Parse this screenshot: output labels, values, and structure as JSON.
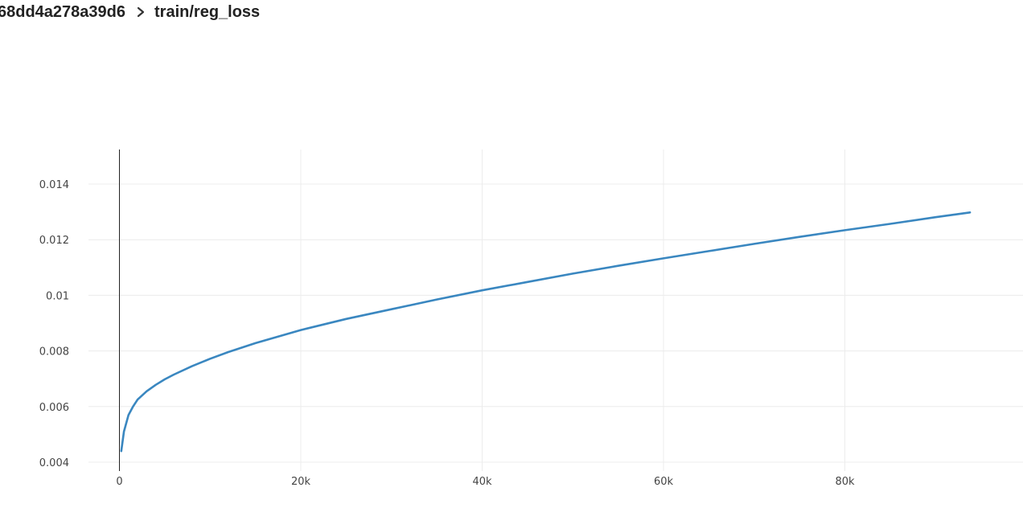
{
  "breadcrumb": {
    "run": "68dd4a278a39d6",
    "separator_icon": "chevron-right-icon",
    "metric": "train/reg_loss"
  },
  "colors": {
    "series": "#3a87c0",
    "grid": "#ececec",
    "axis": "#222222",
    "tick_text": "#444444"
  },
  "chart_data": {
    "type": "line",
    "title": "train/reg_loss",
    "xlabel": "",
    "ylabel": "",
    "xlim": [
      -5000,
      100000
    ],
    "ylim": [
      0.0039,
      0.0152
    ],
    "x_ticks": [
      0,
      20000,
      40000,
      60000,
      80000
    ],
    "x_tick_labels": [
      "0",
      "20k",
      "40k",
      "60k",
      "80k"
    ],
    "y_ticks": [
      0.004,
      0.006,
      0.008,
      0.01,
      0.012,
      0.014
    ],
    "y_tick_labels": [
      "0.004",
      "0.006",
      "0.008",
      "0.01",
      "0.012",
      "0.014"
    ],
    "grid": true,
    "legend": "none",
    "series": [
      {
        "x": [
          200,
          500,
          1000,
          1500,
          2000,
          3000,
          4000,
          5000,
          6000,
          8000,
          10000,
          12000,
          15000,
          20000,
          25000,
          30000,
          35000,
          40000,
          45000,
          50000,
          55000,
          60000,
          65000,
          70000,
          75000,
          80000,
          85000,
          90000,
          93800
        ],
        "y": [
          0.0044,
          0.0051,
          0.0057,
          0.006,
          0.00625,
          0.00655,
          0.00678,
          0.00698,
          0.00715,
          0.00745,
          0.00772,
          0.00796,
          0.00828,
          0.00875,
          0.00915,
          0.0095,
          0.00985,
          0.01018,
          0.01048,
          0.01078,
          0.01106,
          0.01133,
          0.01159,
          0.01185,
          0.0121,
          0.01234,
          0.01257,
          0.01281,
          0.01298
        ]
      }
    ]
  }
}
